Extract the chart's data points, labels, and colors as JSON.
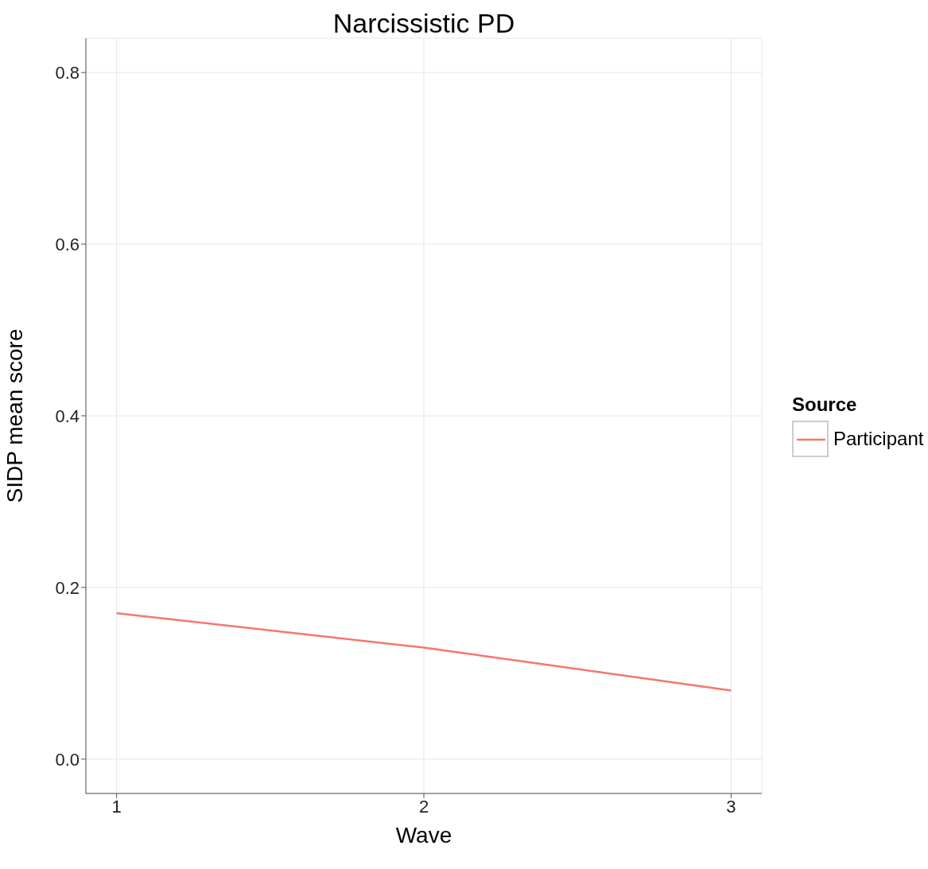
{
  "chart_data": {
    "type": "line",
    "title": "Narcissistic PD",
    "xlabel": "Wave",
    "ylabel": "SIDP mean score",
    "legend_title": "Source",
    "x": [
      1,
      2,
      3
    ],
    "series": [
      {
        "name": "Participant",
        "color": "#f8766d",
        "values": [
          0.17,
          0.13,
          0.08
        ]
      }
    ],
    "xlim": [
      0.9,
      3.1
    ],
    "xticks": [
      1,
      2,
      3
    ],
    "ylim": [
      -0.04,
      0.84
    ],
    "yticks": [
      {
        "value": 0,
        "label": "0.0"
      },
      0.2,
      0.4,
      0.6,
      0.8
    ],
    "grid": true,
    "legend": "right",
    "marker": "none",
    "line_style": "solid"
  }
}
